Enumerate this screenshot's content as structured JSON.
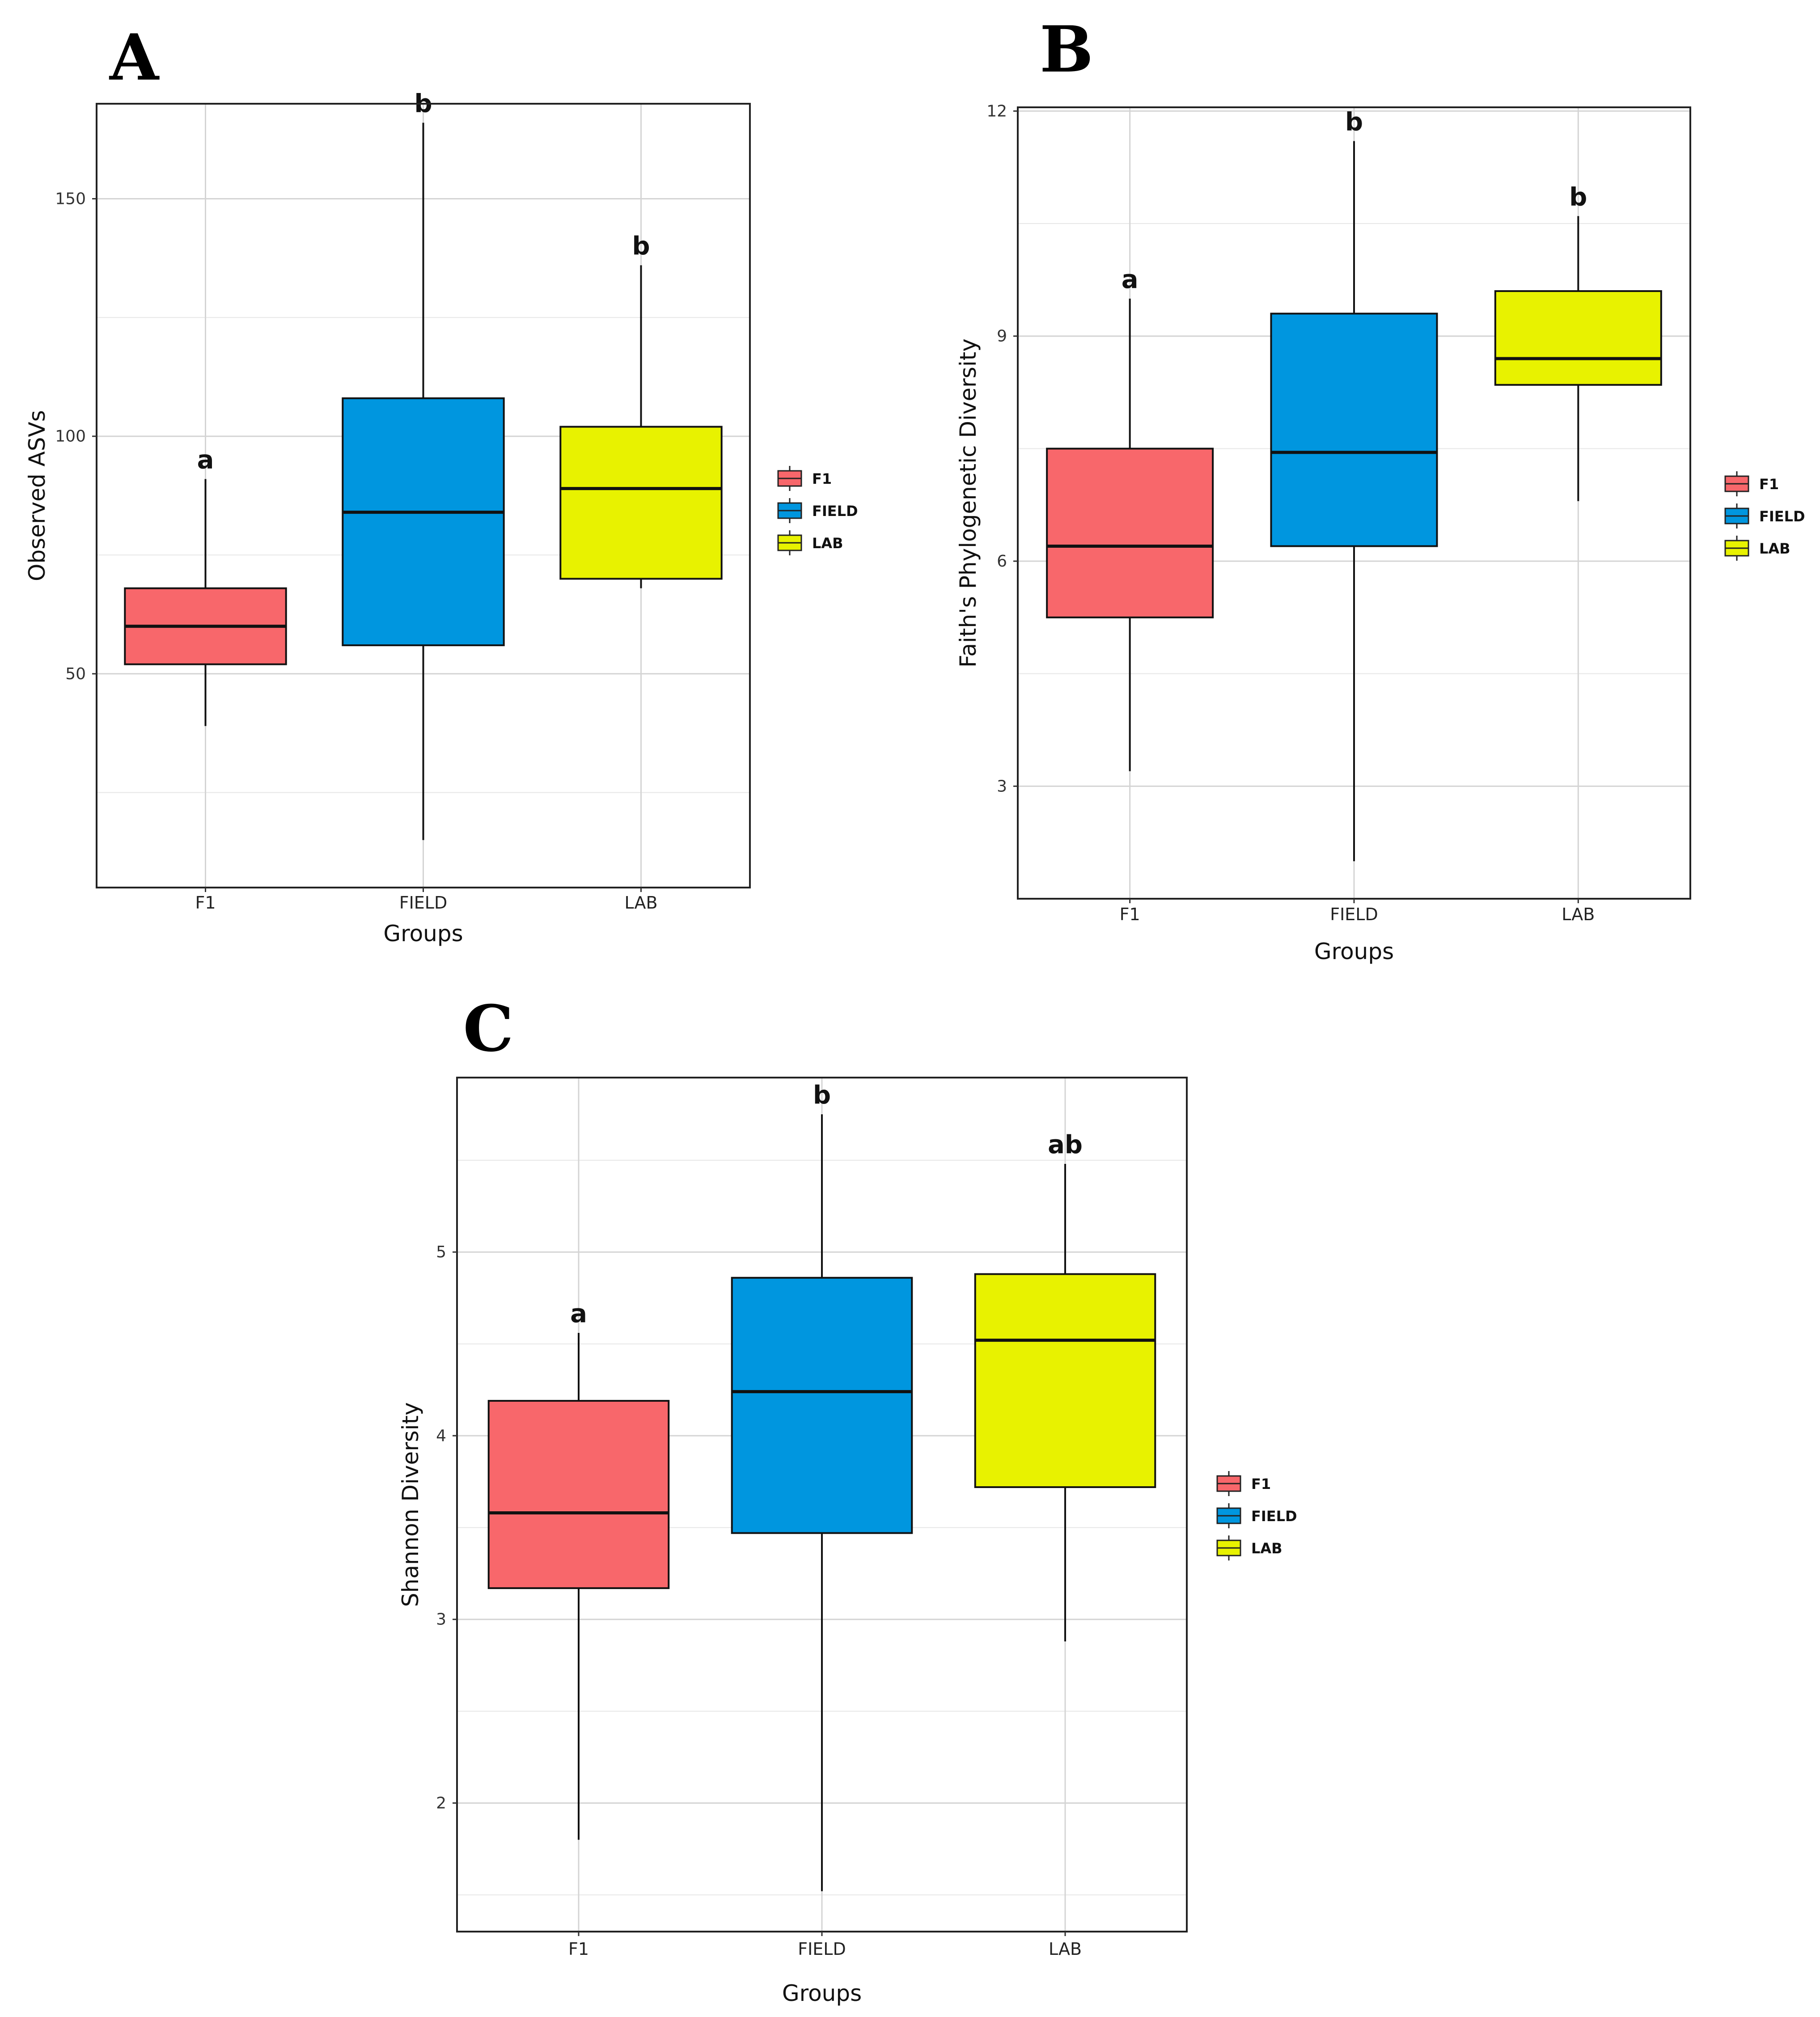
{
  "chart_data": [
    {
      "id": "A",
      "panel_label": "A",
      "type": "box",
      "xlabel": "Groups",
      "ylabel": "Observed ASVs",
      "categories": [
        "F1",
        "FIELD",
        "LAB"
      ],
      "ylim": [
        5,
        170
      ],
      "yticks": [
        50,
        100,
        150
      ],
      "yminor": [
        25,
        75,
        125
      ],
      "boxes": [
        {
          "group": "F1",
          "min": 39,
          "q1": 52,
          "median": 60,
          "q3": 68,
          "max": 91,
          "sig": "a"
        },
        {
          "group": "FIELD",
          "min": 15,
          "q1": 56,
          "median": 84,
          "q3": 108,
          "max": 166,
          "sig": "b"
        },
        {
          "group": "LAB",
          "min": 68,
          "q1": 70,
          "median": 89,
          "q3": 102,
          "max": 136,
          "sig": "b"
        }
      ],
      "legend": {
        "position": "right",
        "entries": [
          "F1",
          "FIELD",
          "LAB"
        ]
      }
    },
    {
      "id": "B",
      "panel_label": "B",
      "type": "box",
      "xlabel": "Groups",
      "ylabel": "Faith's Phylogenetic Diversity",
      "categories": [
        "F1",
        "FIELD",
        "LAB"
      ],
      "ylim": [
        1.5,
        12.05
      ],
      "yticks": [
        3,
        6,
        9,
        12
      ],
      "yminor": [
        4.5,
        7.5,
        10.5
      ],
      "boxes": [
        {
          "group": "F1",
          "min": 3.2,
          "q1": 5.25,
          "median": 6.2,
          "q3": 7.5,
          "max": 9.5,
          "sig": "a"
        },
        {
          "group": "FIELD",
          "min": 2.0,
          "q1": 6.2,
          "median": 7.45,
          "q3": 9.3,
          "max": 11.6,
          "sig": "b"
        },
        {
          "group": "LAB",
          "min": 6.8,
          "q1": 8.35,
          "median": 8.7,
          "q3": 9.6,
          "max": 10.6,
          "sig": "b"
        }
      ],
      "legend": {
        "position": "right",
        "entries": [
          "F1",
          "FIELD",
          "LAB"
        ]
      }
    },
    {
      "id": "C",
      "panel_label": "C",
      "type": "box",
      "xlabel": "Groups",
      "ylabel": "Shannon Diversity",
      "categories": [
        "F1",
        "FIELD",
        "LAB"
      ],
      "ylim": [
        1.3,
        5.95
      ],
      "yticks": [
        2,
        3,
        4,
        5
      ],
      "yminor": [
        1.5,
        2.5,
        3.5,
        4.5,
        5.5
      ],
      "boxes": [
        {
          "group": "F1",
          "min": 1.8,
          "q1": 3.17,
          "median": 3.58,
          "q3": 4.19,
          "max": 4.56,
          "sig": "a"
        },
        {
          "group": "FIELD",
          "min": 1.52,
          "q1": 3.47,
          "median": 4.24,
          "q3": 4.86,
          "max": 5.75,
          "sig": "b"
        },
        {
          "group": "LAB",
          "min": 2.88,
          "q1": 3.72,
          "median": 4.52,
          "q3": 4.88,
          "max": 5.48,
          "sig": "ab"
        }
      ],
      "legend": {
        "position": "right",
        "entries": [
          "F1",
          "FIELD",
          "LAB"
        ]
      }
    }
  ],
  "colors": {
    "F1": "#f8676b",
    "FIELD": "#0096df",
    "LAB": "#e8f200"
  }
}
